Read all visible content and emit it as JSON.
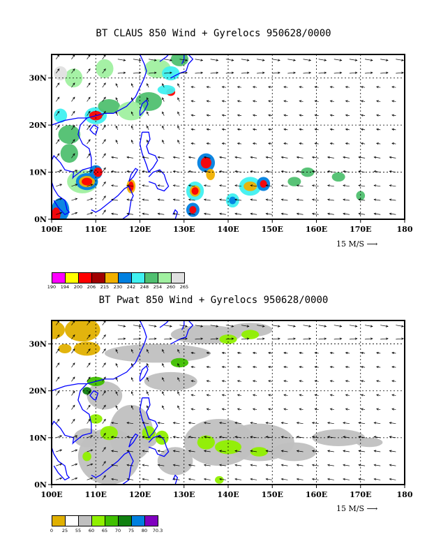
{
  "panels": [
    {
      "title": "BT CLAUS 850 Wind + Gyrelocs 950628/0000",
      "x_ticks": [
        "100E",
        "110E",
        "120E",
        "130E",
        "140E",
        "150E",
        "160E",
        "170E",
        "180"
      ],
      "y_ticks": [
        "0N",
        "10N",
        "20N",
        "30N"
      ],
      "vector_scale_label": "15 M/S",
      "legend": {
        "colors": [
          "#ff00ff",
          "#ffff00",
          "#ff0000",
          "#a00000",
          "#f0b000",
          "#0080e0",
          "#40f0f0",
          "#50c070",
          "#a0f0a0",
          "#e0e0e0"
        ],
        "labels": [
          "190",
          "194",
          "200",
          "206",
          "215",
          "230",
          "242",
          "248",
          "254",
          "260",
          "265"
        ]
      }
    },
    {
      "title": "BT Pwat 850 Wind + Gyrelocs 950628/0000",
      "x_ticks": [
        "100E",
        "110E",
        "120E",
        "130E",
        "140E",
        "150E",
        "160E",
        "170E",
        "180"
      ],
      "y_ticks": [
        "0N",
        "10N",
        "20N",
        "30N"
      ],
      "vector_scale_label": "15 M/S",
      "legend": {
        "colors": [
          "#e0b000",
          "#ffffff",
          "#c0c0c0",
          "#90f000",
          "#40c000",
          "#108010",
          "#0080e0",
          "#8000c0"
        ],
        "labels": [
          "0",
          "25",
          "55",
          "60",
          "65",
          "70",
          "75",
          "80",
          "70.3"
        ]
      }
    }
  ],
  "colors": {
    "coast": "#0000ff",
    "frame": "#000000"
  }
}
